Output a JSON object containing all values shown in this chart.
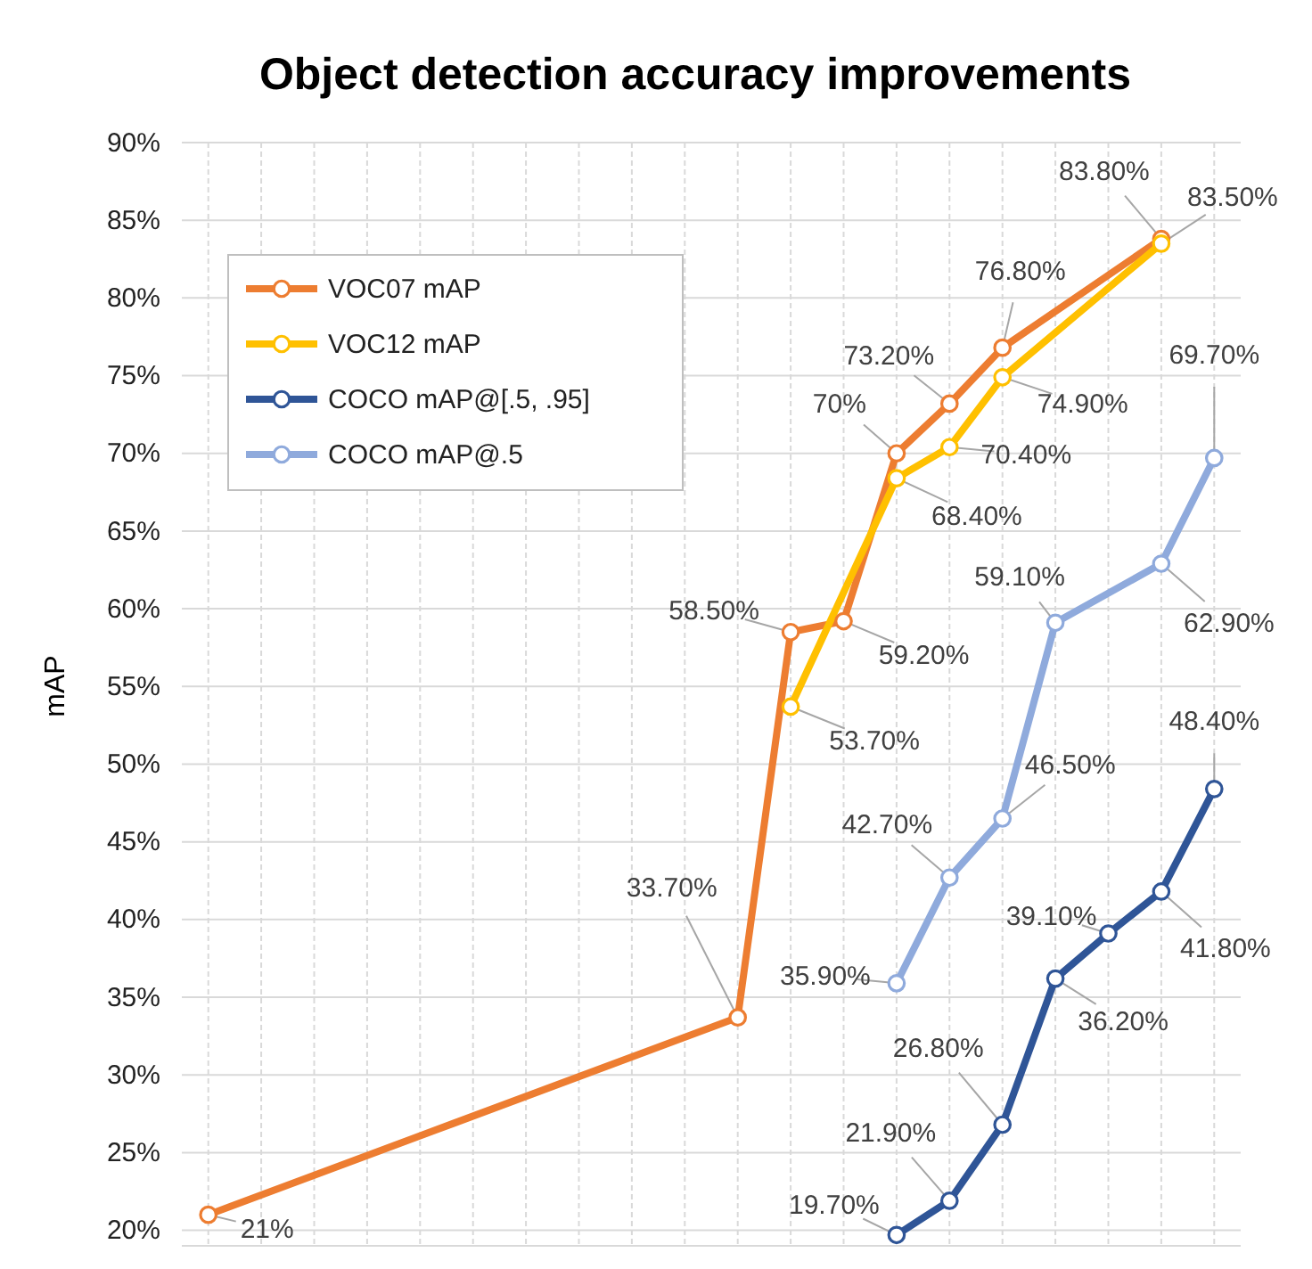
{
  "chart_data": {
    "type": "line",
    "title": "Object detection accuracy improvements",
    "ylabel": "mAP",
    "categories": [
      null,
      null,
      null,
      null,
      null,
      null,
      null,
      null,
      null,
      null,
      null,
      null,
      null,
      null,
      null,
      null,
      null,
      null,
      null,
      null
    ],
    "ylim": [
      19,
      90
    ],
    "yticks": [
      {
        "value": 20,
        "label": "20%"
      },
      {
        "value": 25,
        "label": "25%"
      },
      {
        "value": 30,
        "label": "30%"
      },
      {
        "value": 35,
        "label": "35%"
      },
      {
        "value": 40,
        "label": "40%"
      },
      {
        "value": 45,
        "label": "45%"
      },
      {
        "value": 50,
        "label": "50%"
      },
      {
        "value": 55,
        "label": "55%"
      },
      {
        "value": 60,
        "label": "60%"
      },
      {
        "value": 65,
        "label": "65%"
      },
      {
        "value": 70,
        "label": "70%"
      },
      {
        "value": 75,
        "label": "75%"
      },
      {
        "value": 80,
        "label": "80%"
      },
      {
        "value": 85,
        "label": "85%"
      },
      {
        "value": 90,
        "label": "90%"
      }
    ],
    "grid": true,
    "legend": "top left",
    "marker": "circle",
    "line_style": "solid",
    "series": [
      {
        "name": "VOC07 mAP",
        "color": "#ed7d31",
        "values": [
          21,
          null,
          null,
          null,
          null,
          null,
          null,
          null,
          null,
          null,
          33.7,
          58.5,
          59.2,
          70,
          73.2,
          76.8,
          null,
          null,
          83.8,
          null
        ],
        "value_labels": [
          "21%",
          null,
          null,
          null,
          null,
          null,
          null,
          null,
          null,
          null,
          "33.70%",
          "58.50%",
          "59.20%",
          "70%",
          "73.20%",
          "76.80%",
          null,
          null,
          "83.80%",
          null
        ]
      },
      {
        "name": "VOC12 mAP",
        "color": "#ffc000",
        "values": [
          null,
          null,
          null,
          null,
          null,
          null,
          null,
          null,
          null,
          null,
          null,
          53.7,
          null,
          68.4,
          70.4,
          74.9,
          null,
          null,
          83.5,
          null
        ],
        "value_labels": [
          null,
          null,
          null,
          null,
          null,
          null,
          null,
          null,
          null,
          null,
          null,
          "53.70%",
          null,
          "68.40%",
          "70.40%",
          "74.90%",
          null,
          null,
          "83.50%",
          null
        ]
      },
      {
        "name": "COCO mAP@[.5, .95]",
        "color": "#2f5597",
        "values": [
          null,
          null,
          null,
          null,
          null,
          null,
          null,
          null,
          null,
          null,
          null,
          null,
          null,
          19.7,
          21.9,
          26.8,
          36.2,
          39.1,
          41.8,
          48.4
        ],
        "value_labels": [
          null,
          null,
          null,
          null,
          null,
          null,
          null,
          null,
          null,
          null,
          null,
          null,
          null,
          "19.70%",
          "21.90%",
          "26.80%",
          "36.20%",
          "39.10%",
          "41.80%",
          "48.40%"
        ]
      },
      {
        "name": "COCO mAP@.5",
        "color": "#8faadc",
        "values": [
          null,
          null,
          null,
          null,
          null,
          null,
          null,
          null,
          null,
          null,
          null,
          null,
          null,
          35.9,
          42.7,
          46.5,
          59.1,
          null,
          62.9,
          69.7
        ],
        "value_labels": [
          null,
          null,
          null,
          null,
          null,
          null,
          null,
          null,
          null,
          null,
          null,
          null,
          null,
          "35.90%",
          "42.70%",
          "46.50%",
          "59.10%",
          null,
          "62.90%",
          "69.70%"
        ]
      }
    ]
  }
}
